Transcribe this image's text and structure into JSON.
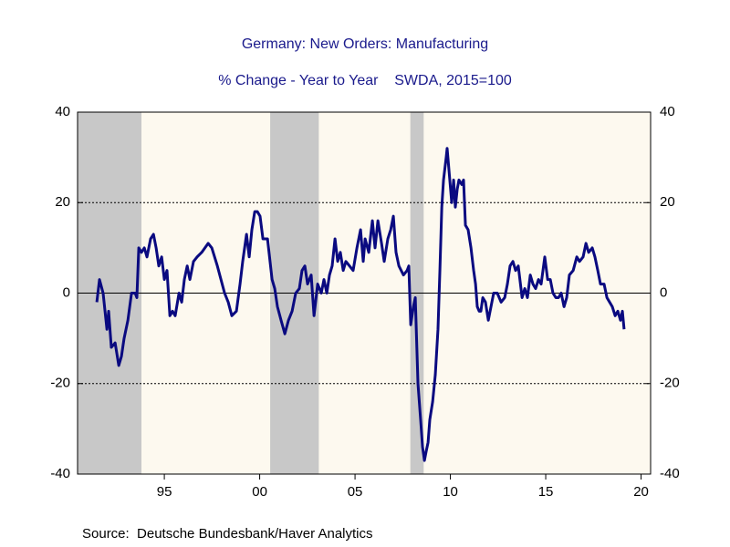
{
  "chart_data": {
    "type": "line",
    "title": "Germany: New Orders: Manufacturing",
    "subtitle": "% Change - Year to Year    SWDA, 2015=100",
    "source": "Source:  Deutsche Bundesbank/Haver Analytics",
    "xlim": [
      1990.45,
      2020.5
    ],
    "xticks": [
      {
        "value": 1995,
        "label": "95"
      },
      {
        "value": 2000,
        "label": "00"
      },
      {
        "value": 2005,
        "label": "05"
      },
      {
        "value": 2010,
        "label": "10"
      },
      {
        "value": 2015,
        "label": "15"
      },
      {
        "value": 2020,
        "label": "20"
      }
    ],
    "ylim": [
      -40,
      40
    ],
    "yticks": [
      -40,
      -20,
      0,
      20,
      40
    ],
    "y2lim": [
      -40,
      40
    ],
    "y2ticks": [
      -40,
      -20,
      0,
      20,
      40
    ],
    "grid": true,
    "shaded": [
      [
        1990.45,
        1993.8
      ],
      [
        2000.55,
        2003.1
      ],
      [
        2007.9,
        2008.6
      ]
    ],
    "shade_color": "#c8c8c8",
    "x": [
      1991.46,
      1991.6,
      1991.79,
      1991.99,
      1992.08,
      1992.22,
      1992.42,
      1992.61,
      1992.75,
      1992.89,
      1993.09,
      1993.28,
      1993.47,
      1993.56,
      1993.66,
      1993.8,
      1993.95,
      1994.09,
      1994.28,
      1994.43,
      1994.57,
      1994.71,
      1994.86,
      1995.0,
      1995.14,
      1995.29,
      1995.43,
      1995.57,
      1995.77,
      1995.91,
      1996.05,
      1996.2,
      1996.34,
      1996.53,
      1996.72,
      1996.96,
      1997.3,
      1997.49,
      1997.78,
      1997.97,
      1998.16,
      1998.35,
      1998.54,
      1998.78,
      1998.97,
      1999.11,
      1999.31,
      1999.45,
      1999.59,
      1999.74,
      1999.88,
      2000.02,
      2000.17,
      2000.41,
      2000.65,
      2000.79,
      2000.93,
      2001.12,
      2001.32,
      2001.51,
      2001.7,
      2001.89,
      2002.08,
      2002.22,
      2002.37,
      2002.51,
      2002.7,
      2002.85,
      2003.04,
      2003.23,
      2003.37,
      2003.52,
      2003.66,
      2003.8,
      2003.95,
      2004.09,
      2004.23,
      2004.38,
      2004.52,
      2004.71,
      2004.9,
      2005.1,
      2005.29,
      2005.43,
      2005.53,
      2005.72,
      2005.91,
      2006.05,
      2006.2,
      2006.39,
      2006.53,
      2006.72,
      2006.87,
      2007.01,
      2007.15,
      2007.3,
      2007.54,
      2007.73,
      2007.82,
      2007.92,
      2008.06,
      2008.16,
      2008.3,
      2008.44,
      2008.54,
      2008.64,
      2008.73,
      2008.83,
      2008.92,
      2009.07,
      2009.21,
      2009.35,
      2009.45,
      2009.55,
      2009.64,
      2009.78,
      2009.83,
      2009.93,
      2010.07,
      2010.17,
      2010.26,
      2010.36,
      2010.45,
      2010.6,
      2010.69,
      2010.79,
      2010.93,
      2011.08,
      2011.22,
      2011.32,
      2011.41,
      2011.51,
      2011.6,
      2011.7,
      2011.84,
      2011.99,
      2012.13,
      2012.27,
      2012.46,
      2012.66,
      2012.85,
      2012.99,
      2013.13,
      2013.28,
      2013.42,
      2013.56,
      2013.76,
      2013.9,
      2014.04,
      2014.19,
      2014.33,
      2014.47,
      2014.62,
      2014.76,
      2014.95,
      2015.1,
      2015.24,
      2015.38,
      2015.53,
      2015.67,
      2015.81,
      2015.96,
      2016.1,
      2016.24,
      2016.44,
      2016.63,
      2016.77,
      2016.96,
      2017.11,
      2017.25,
      2017.44,
      2017.58,
      2017.73,
      2017.87,
      2018.06,
      2018.21,
      2018.35,
      2018.49,
      2018.64,
      2018.78,
      2018.92,
      2019.02,
      2019.11
    ],
    "series": [
      {
        "name": "New Orders",
        "color": "#0a0a80",
        "values": [
          -2,
          3,
          0,
          -8,
          -4,
          -12,
          -11,
          -16,
          -14,
          -10,
          -6,
          0,
          0,
          -1,
          10,
          9,
          10,
          8,
          12,
          13,
          10,
          6,
          8,
          3,
          5,
          -5,
          -4,
          -5,
          0,
          -2,
          3,
          6,
          3,
          7,
          8,
          9,
          11,
          10,
          6,
          3,
          0,
          -2,
          -5,
          -4,
          2,
          7,
          13,
          8,
          14,
          18,
          18,
          17,
          12,
          12,
          3,
          1,
          -3,
          -6,
          -9,
          -6,
          -4,
          0,
          1,
          5,
          6,
          2,
          4,
          -5,
          2,
          0,
          3,
          0,
          4,
          6,
          12,
          7,
          9,
          5,
          7,
          6,
          5,
          10,
          14,
          7,
          12,
          9,
          16,
          10,
          16,
          11,
          7,
          12,
          14,
          17,
          9,
          6,
          4,
          5,
          6,
          -7,
          -3,
          -1,
          -20,
          -28,
          -34,
          -37,
          -35,
          -33,
          -28,
          -24,
          -18,
          -8,
          5,
          19,
          25,
          30,
          32,
          27,
          20,
          25,
          19,
          23,
          25,
          24,
          25,
          15,
          14,
          10,
          5,
          2,
          -3,
          -4,
          -4,
          -1,
          -2,
          -6,
          -3,
          0,
          0,
          -2,
          -1,
          2,
          6,
          7,
          5,
          6,
          -1,
          1,
          -1,
          4,
          2,
          1,
          3,
          2,
          8,
          3,
          3,
          0,
          -1,
          -1,
          0,
          -3,
          -1,
          4,
          5,
          8,
          7,
          8,
          11,
          9,
          10,
          8,
          5,
          2,
          2,
          -1,
          -2,
          -3,
          -5,
          -4,
          -6,
          -4,
          -8
        ]
      }
    ]
  }
}
